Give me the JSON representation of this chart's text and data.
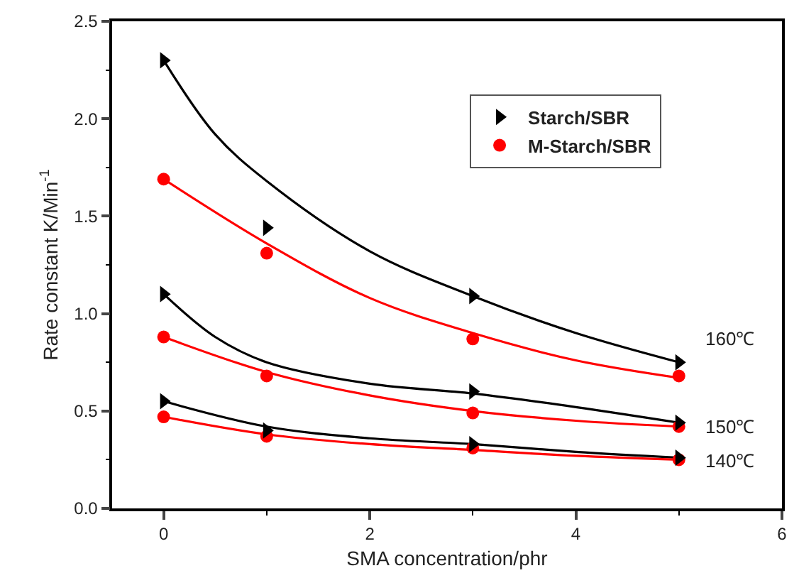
{
  "chart_data": {
    "type": "scatter",
    "xlabel": "SMA concentration/phr",
    "ylabel": "Rate constant K/Min$^{-1}$",
    "xlim": [
      -0.5,
      6
    ],
    "xticks": [
      0,
      2,
      4,
      6
    ],
    "ylim": [
      0,
      2.5
    ],
    "yticks": [
      {
        "value": 0,
        "label": "0.0"
      },
      0.5,
      {
        "value": 1,
        "label": "1.0"
      },
      1.5,
      {
        "value": 2,
        "label": "2.0"
      },
      2.5
    ],
    "legend": "top right",
    "series": [
      {
        "name": "Starch/SBR",
        "color": "#000000",
        "marker": "triangle",
        "x": [
          0,
          1,
          3,
          5
        ],
        "values": [
          2.3,
          1.44,
          1.09,
          0.75
        ]
      },
      {
        "name": "M-Starch/SBR",
        "color": "#ff0000",
        "marker": "circle",
        "x": [
          0,
          1,
          3,
          5
        ],
        "values": [
          1.69,
          1.31,
          0.87,
          0.68
        ]
      },
      {
        "color": "#000000",
        "marker": "triangle",
        "x": [
          0,
          3,
          5
        ],
        "values": [
          1.1,
          0.6,
          0.44
        ]
      },
      {
        "color": "#ff0000",
        "marker": "circle",
        "x": [
          0,
          1,
          3,
          5
        ],
        "values": [
          0.88,
          0.68,
          0.49,
          0.42
        ]
      },
      {
        "color": "#000000",
        "marker": "triangle",
        "x": [
          0,
          1,
          3,
          5
        ],
        "values": [
          0.55,
          0.4,
          0.33,
          0.26
        ]
      },
      {
        "color": "#ff0000",
        "marker": "circle",
        "x": [
          0,
          1,
          3,
          5
        ],
        "values": [
          0.47,
          0.37,
          0.31,
          0.25
        ]
      },
      {
        "type": "line",
        "color": "#000000",
        "x": [
          0,
          0.5,
          1,
          2,
          3,
          4,
          5
        ],
        "values": [
          2.3,
          1.92,
          1.68,
          1.32,
          1.09,
          0.9,
          0.75
        ]
      },
      {
        "type": "line",
        "color": "#ff0000",
        "x": [
          0,
          1,
          2,
          3,
          4,
          5
        ],
        "values": [
          1.69,
          1.36,
          1.08,
          0.9,
          0.76,
          0.67
        ]
      },
      {
        "type": "line",
        "color": "#000000",
        "x": [
          0,
          0.5,
          1,
          2,
          3,
          4,
          5
        ],
        "values": [
          1.1,
          0.88,
          0.75,
          0.64,
          0.59,
          0.52,
          0.44
        ]
      },
      {
        "type": "line",
        "color": "#ff0000",
        "x": [
          0,
          1,
          2,
          3,
          4,
          5
        ],
        "values": [
          0.88,
          0.7,
          0.58,
          0.5,
          0.45,
          0.42
        ]
      },
      {
        "type": "line",
        "color": "#000000",
        "x": [
          0,
          1,
          2,
          3,
          4,
          5
        ],
        "values": [
          0.55,
          0.42,
          0.36,
          0.33,
          0.29,
          0.26
        ]
      },
      {
        "type": "line",
        "color": "#ff0000",
        "x": [
          0,
          1,
          2,
          3,
          4,
          5
        ],
        "values": [
          0.47,
          0.38,
          0.33,
          0.3,
          0.27,
          0.25
        ]
      }
    ],
    "annotations": [
      "160℃",
      "150℃",
      "140℃"
    ]
  }
}
